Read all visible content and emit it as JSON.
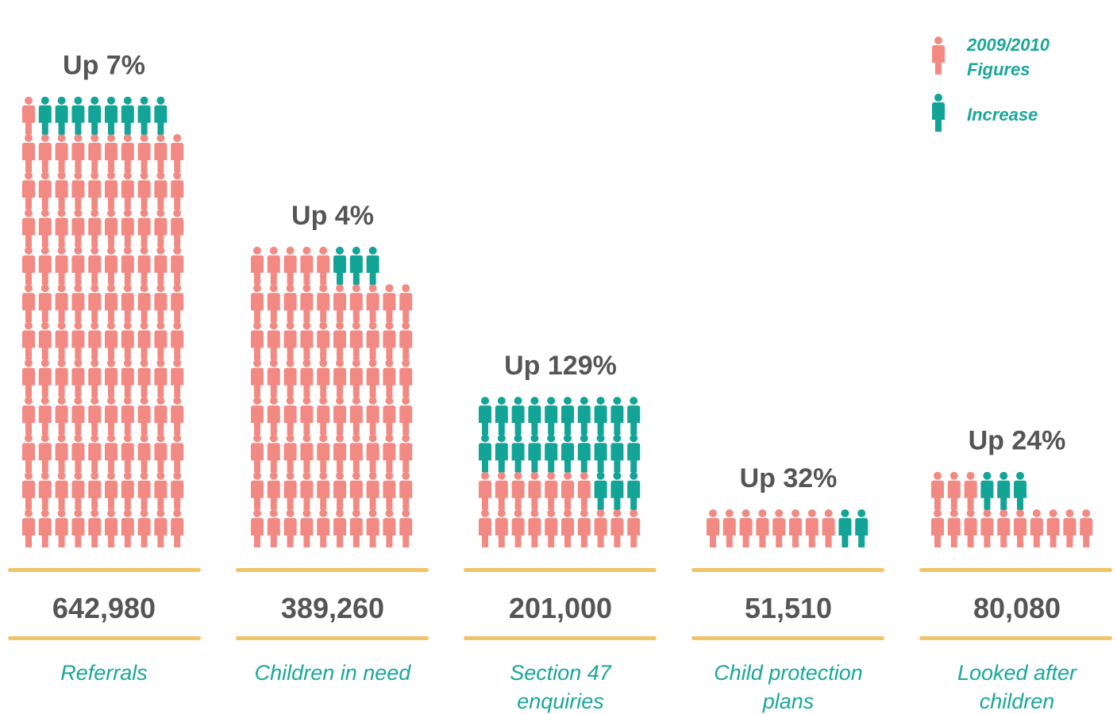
{
  "colors": {
    "base": "#f28a83",
    "increase": "#12a497",
    "rule": "#f2c46a",
    "value_text": "#555555",
    "category_text": "#1aa79a"
  },
  "legend": {
    "base_label_line1": "2009/2010",
    "base_label_line2": "Figures",
    "increase_label": "Increase"
  },
  "chart_data": {
    "type": "pictogram",
    "series": [
      {
        "name": "2009/2010 Figures"
      },
      {
        "name": "Increase"
      }
    ],
    "groups": [
      {
        "category_line1": "Referrals",
        "category_line2": "",
        "value": "642,980",
        "change": "Up 7%",
        "total_icons": 119,
        "increase_icons": 8
      },
      {
        "category_line1": "Children in need",
        "category_line2": "",
        "value": "389,260",
        "change": "Up 4%",
        "total_icons": 78,
        "increase_icons": 3
      },
      {
        "category_line1": "Section 47",
        "category_line2": "enquiries",
        "value": "201,000",
        "change": "Up 129%",
        "total_icons": 40,
        "increase_icons": 23
      },
      {
        "category_line1": "Child protection",
        "category_line2": "plans",
        "value": "51,510",
        "change": "Up 32%",
        "total_icons": 10,
        "increase_icons": 2
      },
      {
        "category_line1": "Looked after",
        "category_line2": "children",
        "value": "80,080",
        "change": "Up 24%",
        "total_icons": 16,
        "increase_icons": 3
      }
    ]
  }
}
